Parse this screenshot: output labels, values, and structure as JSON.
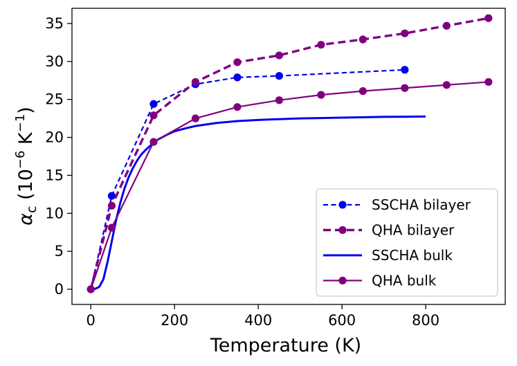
{
  "chart_data": {
    "type": "line",
    "title": "",
    "xlabel": "Temperature (K)",
    "ylabel": {
      "prefix": "α",
      "subscript": "c",
      "units_open": " (10",
      "units_exp": "−6",
      "units_mid": " K",
      "units_exp2": "−1",
      "units_close": ")"
    },
    "xlim": [
      -45,
      990
    ],
    "ylim": [
      -2,
      37
    ],
    "xticks": [
      0,
      200,
      400,
      600,
      800
    ],
    "yticks": [
      0,
      5,
      10,
      15,
      20,
      25,
      30,
      35
    ],
    "legend_position": "lower-right",
    "series": [
      {
        "name": "SSCHA bilayer",
        "color": "#0000ee",
        "style": "dashed",
        "marker": "circle",
        "x": [
          0,
          50,
          150,
          250,
          350,
          450,
          750
        ],
        "y": [
          0,
          12.3,
          24.4,
          27.0,
          27.9,
          28.1,
          28.9
        ]
      },
      {
        "name": "QHA bilayer",
        "color": "#800080",
        "style": "dashed-thick",
        "marker": "circle",
        "x": [
          0,
          50,
          150,
          250,
          350,
          450,
          550,
          650,
          750,
          850,
          950
        ],
        "y": [
          0,
          11.0,
          22.9,
          27.3,
          29.9,
          30.8,
          32.2,
          32.9,
          33.7,
          34.7,
          35.7
        ]
      },
      {
        "name": "SSCHA bulk",
        "color": "#0000ee",
        "style": "solid-thick",
        "marker": "none",
        "x": [
          0,
          10,
          20,
          30,
          40,
          50,
          60,
          70,
          80,
          90,
          100,
          110,
          120,
          130,
          140,
          150,
          160,
          180,
          200,
          220,
          250,
          300,
          350,
          400,
          450,
          500,
          550,
          600,
          650,
          700,
          750,
          800
        ],
        "y": [
          0,
          0.05,
          0.3,
          1.3,
          3.6,
          6.3,
          9.0,
          11.3,
          13.2,
          14.7,
          15.9,
          16.9,
          17.7,
          18.3,
          18.8,
          19.3,
          19.7,
          20.3,
          20.8,
          21.1,
          21.5,
          21.9,
          22.15,
          22.3,
          22.4,
          22.5,
          22.55,
          22.6,
          22.65,
          22.7,
          22.72,
          22.75
        ]
      },
      {
        "name": "QHA bulk",
        "color": "#800080",
        "style": "solid",
        "marker": "circle",
        "x": [
          0,
          50,
          150,
          250,
          350,
          450,
          550,
          650,
          750,
          850,
          950
        ],
        "y": [
          0,
          8.1,
          19.4,
          22.5,
          24.0,
          24.9,
          25.6,
          26.1,
          26.5,
          26.9,
          27.3
        ]
      }
    ]
  }
}
